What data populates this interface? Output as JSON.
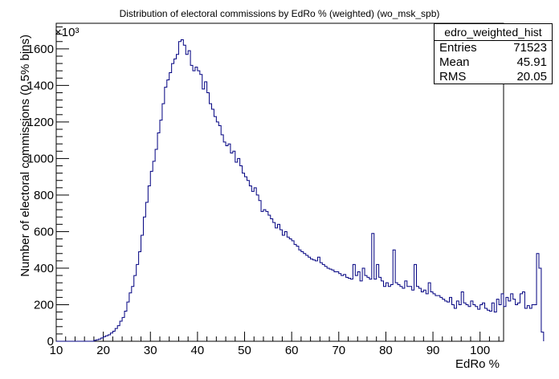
{
  "chart_data": {
    "type": "histogram",
    "title": "Distribution of electoral commissions by EdRo % (weighted) (wo_msk_spb)",
    "xlabel": "EdRo %",
    "ylabel": "Number of electoral commissions (0.5% bins)",
    "y_multiplier_label": "×10³",
    "xlim": [
      10,
      105
    ],
    "ylim": [
      0,
      1740
    ],
    "bin_width": 0.5,
    "x_ticks": [
      10,
      20,
      30,
      40,
      50,
      60,
      70,
      80,
      90,
      100
    ],
    "y_ticks": [
      0,
      200,
      400,
      600,
      800,
      1000,
      1200,
      1400,
      1600
    ],
    "grid": false,
    "line_color": "#000080",
    "bins_start": 10,
    "values": [
      0,
      0,
      0,
      0,
      0,
      0,
      0,
      0,
      0,
      0,
      0,
      0,
      0,
      0,
      0,
      0,
      5,
      8,
      12,
      18,
      25,
      30,
      35,
      45,
      55,
      70,
      85,
      110,
      130,
      165,
      215,
      265,
      300,
      360,
      420,
      490,
      580,
      680,
      760,
      850,
      930,
      985,
      1050,
      1140,
      1210,
      1300,
      1390,
      1430,
      1470,
      1520,
      1545,
      1570,
      1640,
      1650,
      1620,
      1570,
      1590,
      1510,
      1480,
      1500,
      1480,
      1460,
      1380,
      1420,
      1360,
      1300,
      1270,
      1230,
      1200,
      1180,
      1130,
      1090,
      1070,
      1080,
      1030,
      1040,
      980,
      1000,
      960,
      920,
      900,
      880,
      850,
      820,
      840,
      800,
      770,
      710,
      720,
      710,
      690,
      670,
      650,
      620,
      640,
      610,
      580,
      600,
      570,
      560,
      550,
      530,
      520,
      500,
      490,
      480,
      470,
      460,
      450,
      445,
      440,
      460,
      430,
      420,
      410,
      400,
      395,
      390,
      380,
      380,
      370,
      360,
      365,
      350,
      345,
      340,
      420,
      360,
      380,
      330,
      400,
      360,
      350,
      340,
      590,
      340,
      420,
      350,
      330,
      300,
      320,
      300,
      310,
      500,
      320,
      310,
      300,
      290,
      330,
      300,
      300,
      280,
      420,
      300,
      290,
      270,
      280,
      260,
      320,
      270,
      260,
      250,
      250,
      240,
      230,
      220,
      215,
      240,
      200,
      180,
      220,
      200,
      270,
      210,
      200,
      190,
      220,
      200,
      190,
      175,
      200,
      210,
      180,
      170,
      165,
      210,
      160,
      230,
      200,
      260,
      190,
      240,
      220,
      260,
      230,
      200,
      210,
      260,
      270,
      180,
      195,
      180,
      200,
      200,
      480,
      400,
      50
    ]
  }
}
